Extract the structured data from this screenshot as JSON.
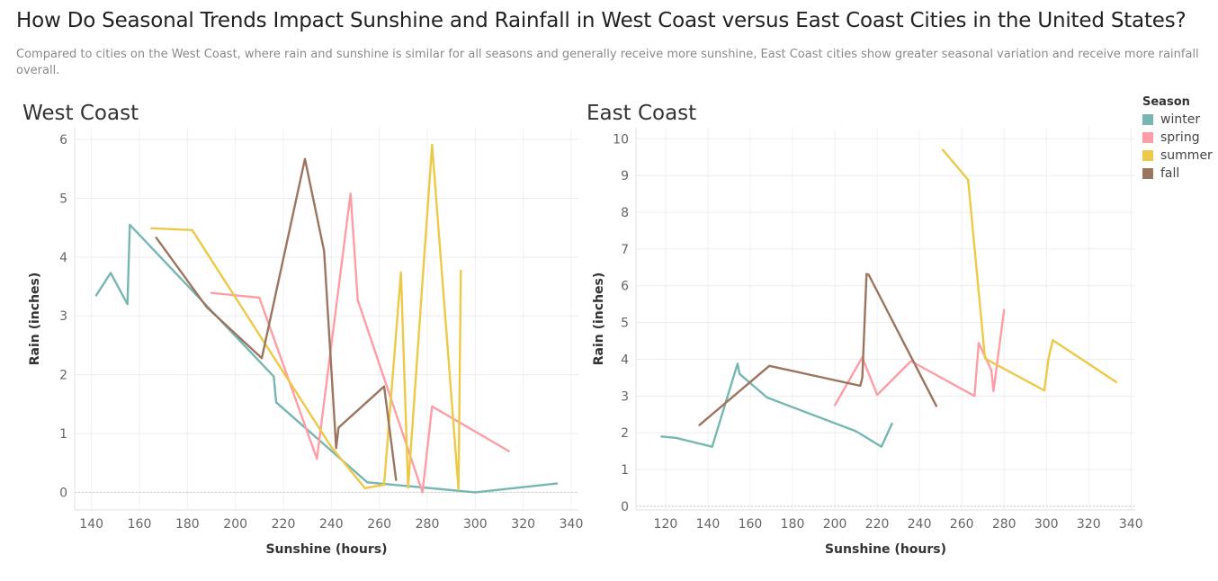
{
  "header": {
    "title": "How Do Seasonal Trends Impact Sunshine and Rainfall in West Coast versus East Coast Cities in the United States?",
    "subtitle": "Compared  to cities on the West Coast, where rain and sunshine is similar for all seasons and generally receive more sunshine, East Coast cities show greater seasonal variation and receive more rainfall overall."
  },
  "legend": {
    "title": "Season",
    "items": [
      {
        "label": "winter",
        "color": "#76b7b2"
      },
      {
        "label": "spring",
        "color": "#ff9da7"
      },
      {
        "label": "summer",
        "color": "#edc948"
      },
      {
        "label": "fall",
        "color": "#9c755f"
      }
    ]
  },
  "chart_data": [
    {
      "type": "line",
      "title": "West Coast",
      "xlabel": "Sunshine (hours)",
      "ylabel": "Rain (inches)",
      "xlim": [
        133,
        343
      ],
      "ylim": [
        -0.3,
        6.2
      ],
      "xticks": [
        140,
        160,
        180,
        200,
        220,
        240,
        260,
        280,
        300,
        320,
        340
      ],
      "yticks": [
        0,
        1,
        2,
        3,
        4,
        5,
        6
      ],
      "grid": true,
      "series": [
        {
          "name": "winter",
          "color": "#76b7b2",
          "points": [
            [
              142,
              3.35
            ],
            [
              148,
              3.73
            ],
            [
              155,
              3.2
            ],
            [
              156,
              4.55
            ],
            [
              216,
              1.97
            ],
            [
              217,
              1.53
            ],
            [
              255,
              0.17
            ],
            [
              300,
              0.0
            ],
            [
              334,
              0.15
            ]
          ]
        },
        {
          "name": "spring",
          "color": "#ff9da7",
          "points": [
            [
              190,
              3.39
            ],
            [
              210,
              3.31
            ],
            [
              234,
              0.57
            ],
            [
              248,
              5.08
            ],
            [
              251,
              3.27
            ],
            [
              278,
              0.0
            ],
            [
              282,
              1.46
            ],
            [
              314,
              0.7
            ]
          ]
        },
        {
          "name": "summer",
          "color": "#edc948",
          "points": [
            [
              165,
              4.49
            ],
            [
              182,
              4.46
            ],
            [
              240,
              0.77
            ],
            [
              254,
              0.07
            ],
            [
              262,
              0.13
            ],
            [
              269,
              3.74
            ],
            [
              272,
              0.08
            ],
            [
              282,
              5.91
            ],
            [
              293,
              0.05
            ],
            [
              294,
              3.77
            ]
          ]
        },
        {
          "name": "fall",
          "color": "#9c755f",
          "points": [
            [
              167,
              4.33
            ],
            [
              188,
              3.15
            ],
            [
              211,
              2.28
            ],
            [
              229,
              5.67
            ],
            [
              237,
              4.1
            ],
            [
              242,
              0.75
            ],
            [
              243,
              1.1
            ],
            [
              262,
              1.8
            ],
            [
              267,
              0.21
            ]
          ]
        }
      ]
    },
    {
      "type": "line",
      "title": "East Coast",
      "xlabel": "Sunshine (hours)",
      "ylabel": "Rain (inches)",
      "xlim": [
        106,
        342
      ],
      "ylim": [
        -0.1,
        10.3
      ],
      "xticks": [
        120,
        140,
        160,
        180,
        200,
        220,
        240,
        260,
        280,
        300,
        320,
        340
      ],
      "yticks": [
        0,
        1,
        2,
        3,
        4,
        5,
        6,
        7,
        8,
        9,
        10
      ],
      "grid": true,
      "series": [
        {
          "name": "winter",
          "color": "#76b7b2",
          "points": [
            [
              118,
              1.9
            ],
            [
              125,
              1.86
            ],
            [
              142,
              1.62
            ],
            [
              154,
              3.88
            ],
            [
              155,
              3.6
            ],
            [
              168,
              2.96
            ],
            [
              210,
              2.04
            ],
            [
              222,
              1.62
            ],
            [
              227,
              2.25
            ]
          ]
        },
        {
          "name": "spring",
          "color": "#ff9da7",
          "points": [
            [
              200,
              2.75
            ],
            [
              213,
              4.05
            ],
            [
              220,
              3.03
            ],
            [
              236,
              3.95
            ],
            [
              266,
              3.0
            ],
            [
              268,
              4.44
            ],
            [
              274,
              3.7
            ],
            [
              275,
              3.13
            ],
            [
              280,
              5.34
            ]
          ]
        },
        {
          "name": "summer",
          "color": "#edc948",
          "points": [
            [
              251,
              9.7
            ],
            [
              263,
              8.88
            ],
            [
              271,
              4.02
            ],
            [
              299,
              3.15
            ],
            [
              301,
              4.02
            ],
            [
              303,
              4.52
            ],
            [
              333,
              3.38
            ]
          ]
        },
        {
          "name": "fall",
          "color": "#9c755f",
          "points": [
            [
              136,
              2.21
            ],
            [
              169,
              3.82
            ],
            [
              212,
              3.28
            ],
            [
              213,
              3.5
            ],
            [
              215,
              6.32
            ],
            [
              216,
              6.3
            ],
            [
              248,
              2.73
            ]
          ]
        }
      ]
    }
  ]
}
